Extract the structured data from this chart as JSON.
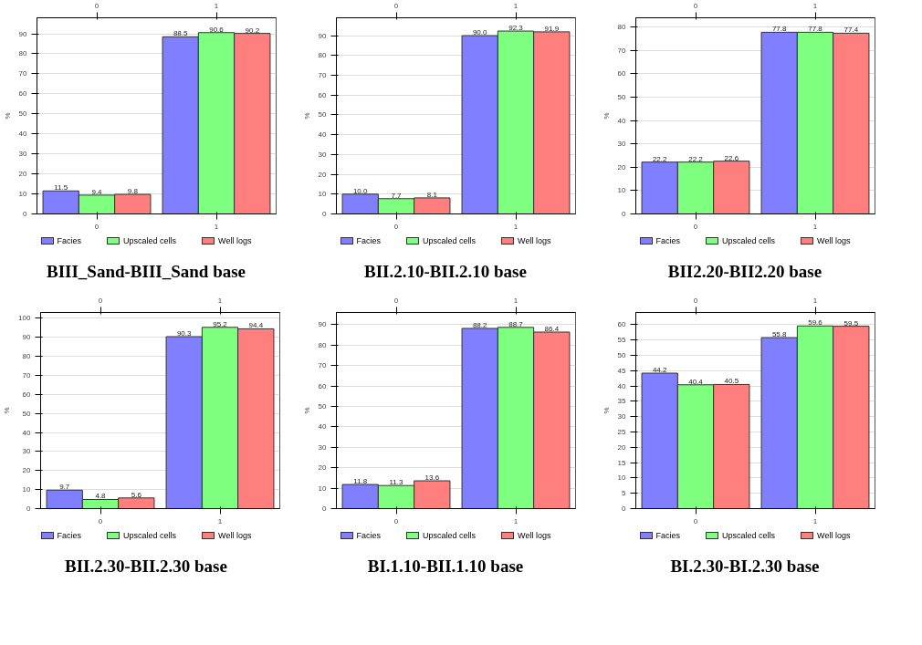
{
  "chart_data": [
    {
      "type": "bar",
      "title": "BIII_Sand-BIII_Sand base",
      "ylabel": "%",
      "categories": [
        "0",
        "1"
      ],
      "ylim": [
        0,
        98
      ],
      "yticks": [
        0,
        10,
        20,
        30,
        40,
        50,
        60,
        70,
        80,
        90
      ],
      "grid": "y",
      "legend": "bottom",
      "data_labels": true,
      "series": [
        {
          "name": "Facies",
          "color": "#7f7fff",
          "values": [
            11.5,
            88.5
          ]
        },
        {
          "name": "Upscaled cells",
          "color": "#7fff7f",
          "values": [
            9.4,
            90.6
          ]
        },
        {
          "name": "Well logs",
          "color": "#ff7f7f",
          "values": [
            9.8,
            90.2
          ]
        }
      ]
    },
    {
      "type": "bar",
      "title": "BII.2.10-BII.2.10 base",
      "ylabel": "%",
      "categories": [
        "0",
        "1"
      ],
      "ylim": [
        0,
        99
      ],
      "yticks": [
        0,
        10,
        20,
        30,
        40,
        50,
        60,
        70,
        80,
        90
      ],
      "grid": "y",
      "legend": "bottom",
      "data_labels": true,
      "series": [
        {
          "name": "Facies",
          "color": "#7f7fff",
          "values": [
            10,
            90
          ],
          "value_labels": [
            "10.0",
            "90.0"
          ]
        },
        {
          "name": "Upscaled cells",
          "color": "#7fff7f",
          "values": [
            7.7,
            92.3
          ],
          "value_labels": [
            "7.7",
            "92.3"
          ]
        },
        {
          "name": "Well logs",
          "color": "#ff7f7f",
          "values": [
            8.1,
            91.9
          ],
          "value_labels": [
            "8.1",
            "91.9"
          ]
        }
      ]
    },
    {
      "type": "bar",
      "title": "BII2.20-BII2.20 base",
      "ylabel": "%",
      "categories": [
        "0",
        "1"
      ],
      "ylim": [
        0,
        84
      ],
      "yticks": [
        0,
        10,
        20,
        30,
        40,
        50,
        60,
        70,
        80
      ],
      "grid": "y",
      "legend": "bottom",
      "data_labels": true,
      "series": [
        {
          "name": "Facies",
          "color": "#7f7fff",
          "values": [
            22.2,
            77.8
          ]
        },
        {
          "name": "Upscaled cells",
          "color": "#7fff7f",
          "values": [
            22.2,
            77.8
          ]
        },
        {
          "name": "Well logs",
          "color": "#ff7f7f",
          "values": [
            22.6,
            77.4
          ]
        }
      ]
    },
    {
      "type": "bar",
      "title": "BII.2.30-BII.2.30 base",
      "ylabel": "%",
      "categories": [
        "0",
        "1"
      ],
      "ylim": [
        0,
        103
      ],
      "yticks": [
        0,
        10,
        20,
        30,
        40,
        50,
        60,
        70,
        80,
        90,
        100
      ],
      "grid": "y",
      "legend": "bottom",
      "data_labels": true,
      "series": [
        {
          "name": "Facies",
          "color": "#7f7fff",
          "values": [
            9.7,
            90.3
          ]
        },
        {
          "name": "Upscaled cells",
          "color": "#7fff7f",
          "values": [
            4.8,
            95.2
          ]
        },
        {
          "name": "Well logs",
          "color": "#ff7f7f",
          "values": [
            5.6,
            94.4
          ]
        }
      ]
    },
    {
      "type": "bar",
      "title": "BI.1.10-BII.1.10 base",
      "ylabel": "%",
      "categories": [
        "0",
        "1"
      ],
      "ylim": [
        0,
        96
      ],
      "yticks": [
        0,
        10,
        20,
        30,
        40,
        50,
        60,
        70,
        80,
        90
      ],
      "grid": "y",
      "legend": "bottom",
      "data_labels": true,
      "series": [
        {
          "name": "Facies",
          "color": "#7f7fff",
          "values": [
            11.8,
            88.2
          ]
        },
        {
          "name": "Upscaled cells",
          "color": "#7fff7f",
          "values": [
            11.3,
            88.7
          ]
        },
        {
          "name": "Well logs",
          "color": "#ff7f7f",
          "values": [
            13.6,
            86.4
          ]
        }
      ]
    },
    {
      "type": "bar",
      "title": "BI.2.30-BI.2.30 base",
      "ylabel": "%",
      "categories": [
        "0",
        "1"
      ],
      "ylim": [
        0,
        64
      ],
      "yticks": [
        0,
        5,
        10,
        15,
        20,
        25,
        30,
        35,
        40,
        45,
        50,
        55,
        60
      ],
      "grid": "y",
      "legend": "bottom",
      "data_labels": true,
      "series": [
        {
          "name": "Facies",
          "color": "#7f7fff",
          "values": [
            44.2,
            55.8
          ]
        },
        {
          "name": "Upscaled cells",
          "color": "#7fff7f",
          "values": [
            40.4,
            59.6
          ]
        },
        {
          "name": "Well logs",
          "color": "#ff7f7f",
          "values": [
            40.5,
            59.5
          ]
        }
      ]
    }
  ]
}
